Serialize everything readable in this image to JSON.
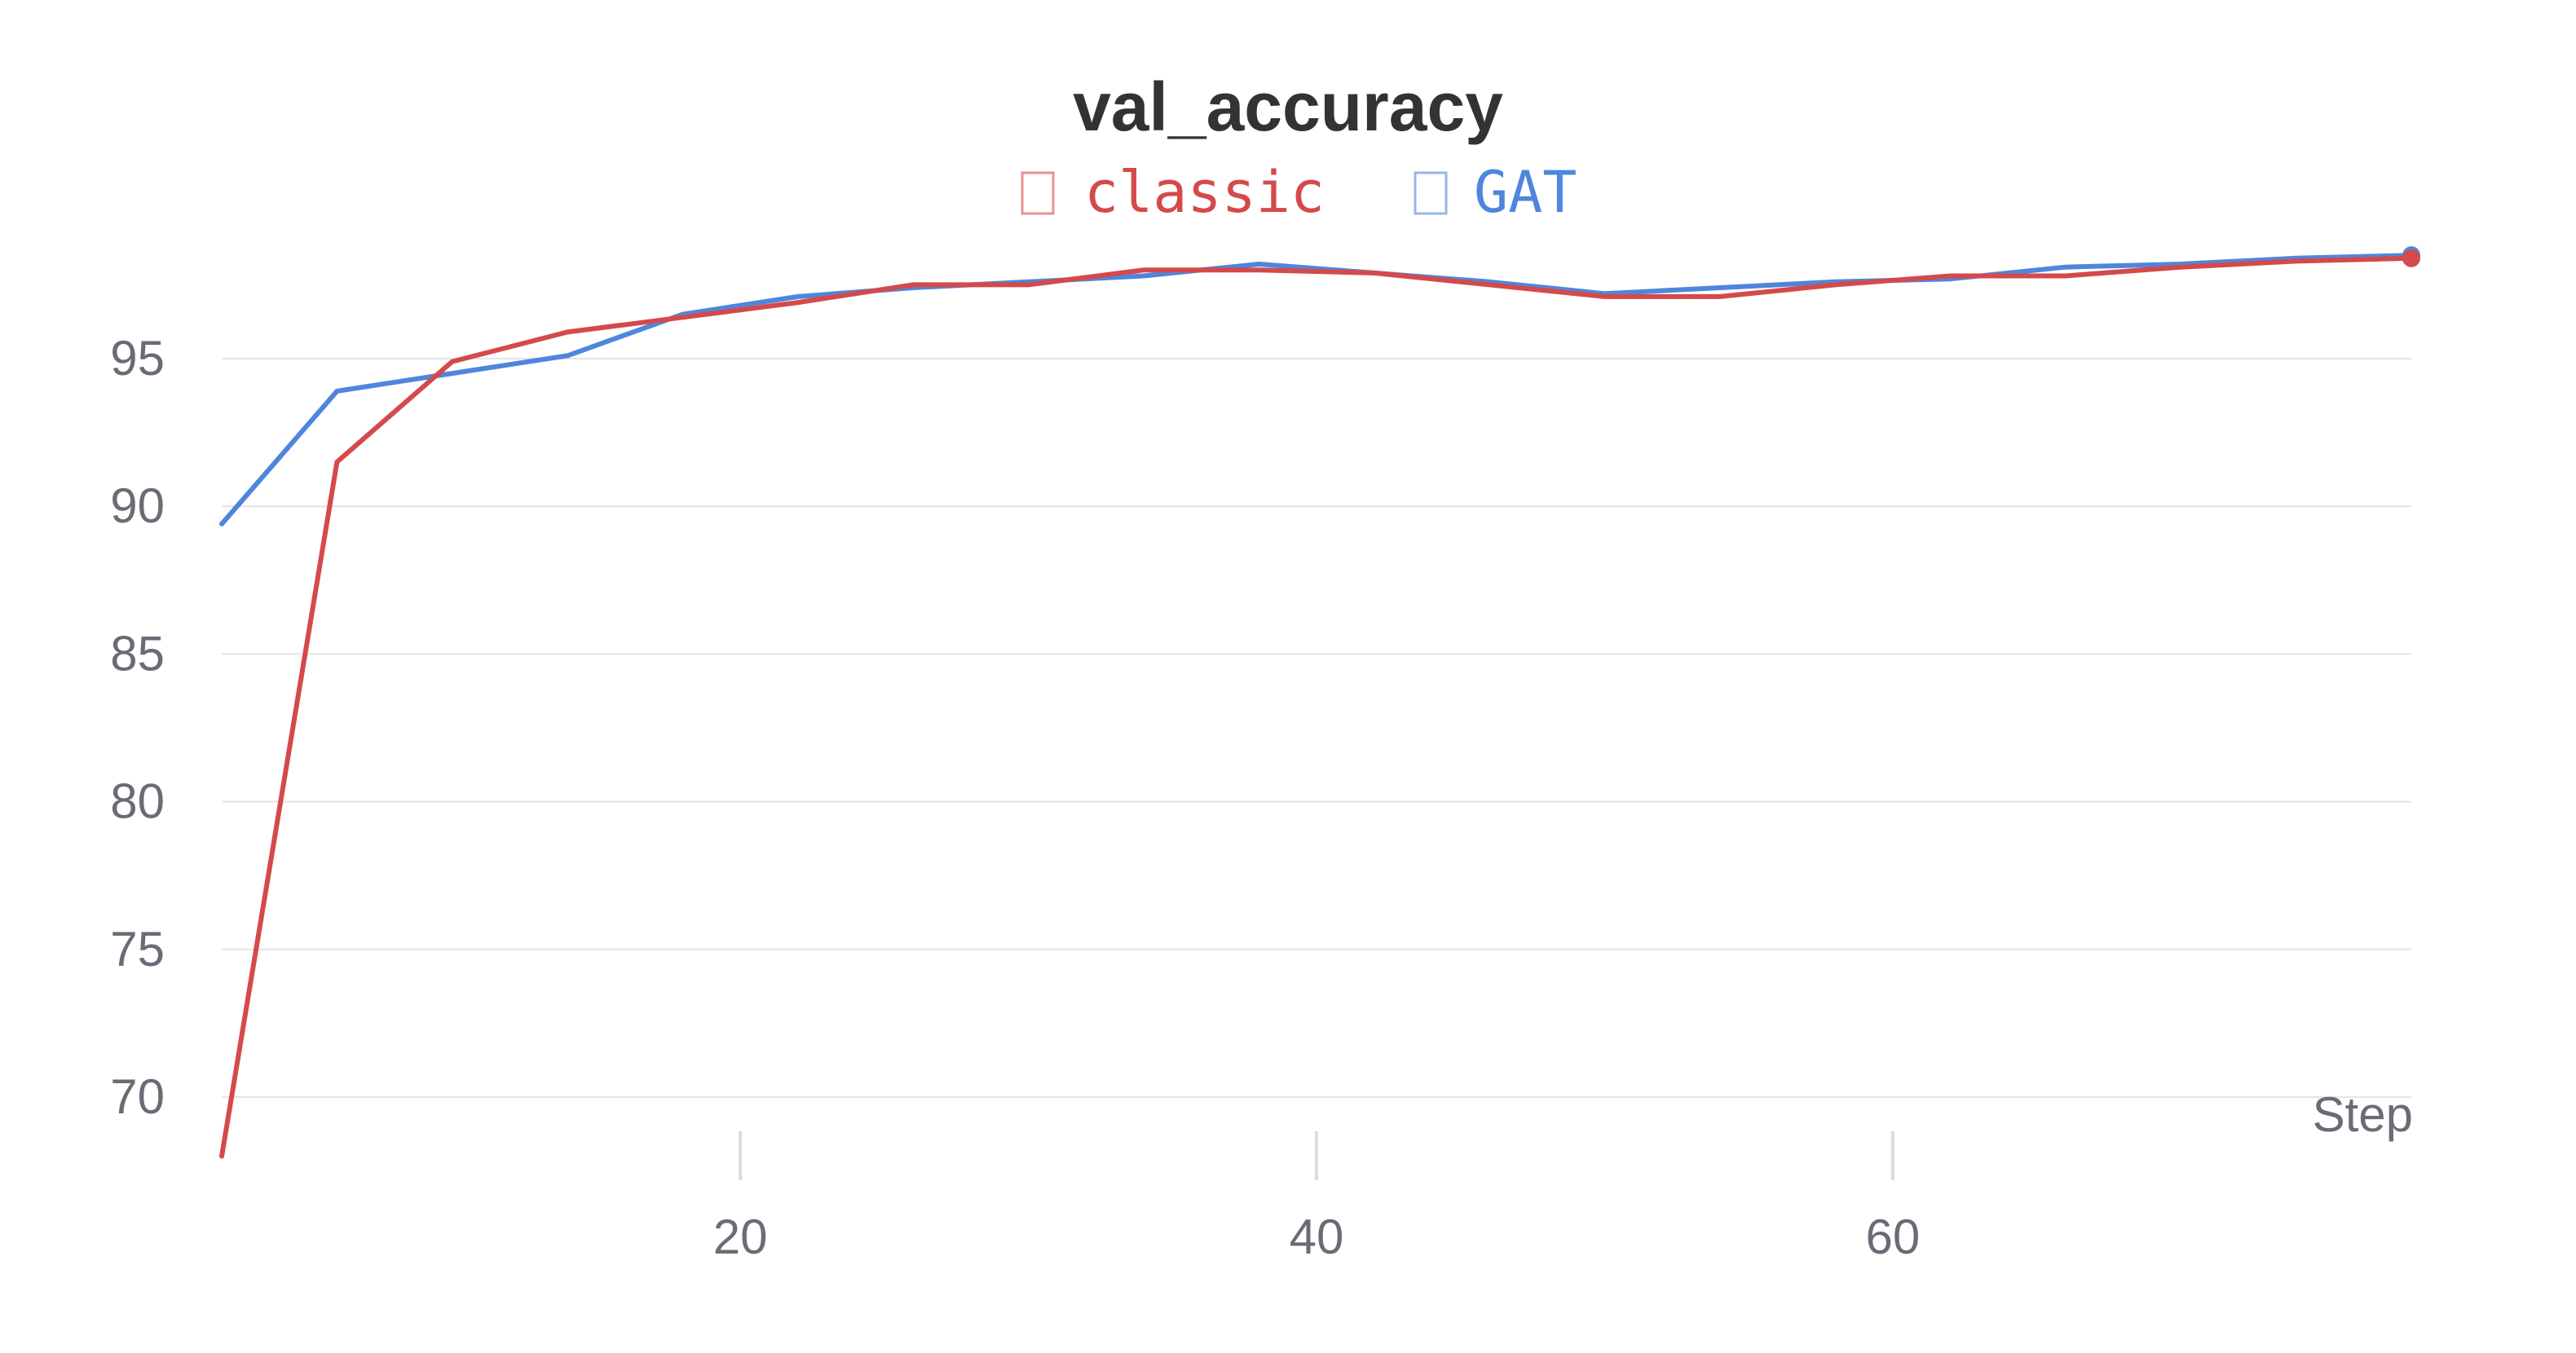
{
  "chart_data": {
    "type": "line",
    "title": "val_accuracy",
    "xlabel": "Step",
    "ylabel": "",
    "xlim": [
      2,
      78
    ],
    "ylim": [
      68,
      98.6
    ],
    "yticks": [
      70,
      75,
      80,
      85,
      90,
      95
    ],
    "xticks": [
      20,
      40,
      60
    ],
    "grid": true,
    "legend_position": "top-center",
    "series": [
      {
        "name": "classic",
        "color": "#d44a4a",
        "x": [
          2,
          6,
          10,
          14,
          18,
          22,
          26,
          30,
          34,
          38,
          42,
          46,
          50,
          54,
          58,
          62,
          66,
          70,
          74,
          78
        ],
        "values": [
          68.0,
          91.5,
          94.9,
          95.9,
          96.4,
          96.9,
          97.5,
          97.5,
          98.0,
          98.0,
          97.9,
          97.5,
          97.1,
          97.1,
          97.5,
          97.8,
          97.8,
          98.1,
          98.3,
          98.4
        ]
      },
      {
        "name": "GAT",
        "color": "#4f86dc",
        "x": [
          2,
          6,
          10,
          14,
          18,
          22,
          26,
          30,
          34,
          38,
          42,
          46,
          50,
          54,
          58,
          62,
          66,
          70,
          74,
          78
        ],
        "values": [
          89.4,
          93.9,
          94.5,
          95.1,
          96.5,
          97.1,
          97.4,
          97.6,
          97.8,
          98.2,
          97.9,
          97.6,
          97.2,
          97.4,
          97.6,
          97.7,
          98.1,
          98.2,
          98.4,
          98.5
        ]
      }
    ]
  }
}
